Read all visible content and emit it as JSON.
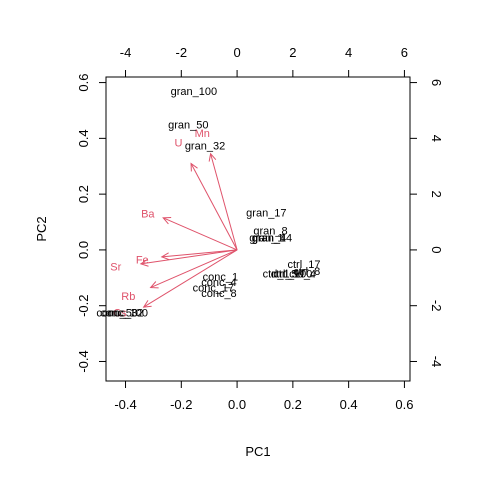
{
  "chart_data": {
    "type": "scatter",
    "subtype": "biplot",
    "title": "",
    "xlabel": "PC1",
    "ylabel": "PC2",
    "primary_axes": {
      "xlim": [
        -0.47,
        0.62
      ],
      "ylim": [
        -0.47,
        0.62
      ],
      "xticks": [
        "-0.4",
        "-0.2",
        "0.0",
        "0.2",
        "0.4",
        "0.6"
      ],
      "xtick_values": [
        -0.4,
        -0.2,
        0.0,
        0.2,
        0.4,
        0.6
      ],
      "yticks": [
        "-0.4",
        "-0.2",
        "0.0",
        "0.2",
        "0.4",
        "0.6"
      ],
      "ytick_values": [
        -0.4,
        -0.2,
        0.0,
        0.2,
        0.4,
        0.6
      ]
    },
    "secondary_axes": {
      "xlim": [
        -4.7,
        6.2
      ],
      "ylim": [
        -4.7,
        6.2
      ],
      "xticks": [
        "-4",
        "-2",
        "0",
        "2",
        "4",
        "6"
      ],
      "xtick_values": [
        -4,
        -2,
        0,
        2,
        4,
        6
      ],
      "yticks": [
        "-4",
        "-2",
        "0",
        "2",
        "4",
        "6"
      ],
      "ytick_values": [
        -4,
        -2,
        0,
        2,
        4,
        6
      ]
    },
    "observations": [
      {
        "label": "gran_100",
        "x": -0.155,
        "y": 0.57
      },
      {
        "label": "gran_50",
        "x": -0.175,
        "y": 0.45
      },
      {
        "label": "gran_32",
        "x": -0.115,
        "y": 0.375
      },
      {
        "label": "gran_17",
        "x": 0.105,
        "y": 0.135
      },
      {
        "label": "gran_8",
        "x": 0.12,
        "y": 0.07
      },
      {
        "label": "gran_1",
        "x": 0.105,
        "y": 0.045
      },
      {
        "label": "gran_4",
        "x": 0.115,
        "y": 0.045
      },
      {
        "label": "gran_14",
        "x": 0.125,
        "y": 0.045
      },
      {
        "label": "ctrl_17",
        "x": 0.24,
        "y": -0.05
      },
      {
        "label": "ctrl_1",
        "x": 0.14,
        "y": -0.085
      },
      {
        "label": "ctrl_50",
        "x": 0.18,
        "y": -0.085
      },
      {
        "label": "ctrl_100",
        "x": 0.2,
        "y": -0.085
      },
      {
        "label": "ctrl_4",
        "x": 0.235,
        "y": -0.085
      },
      {
        "label": "ctrl_8",
        "x": 0.25,
        "y": -0.075
      },
      {
        "label": "conc_1",
        "x": -0.06,
        "y": -0.095
      },
      {
        "label": "conc_4",
        "x": -0.065,
        "y": -0.115
      },
      {
        "label": "conc_17",
        "x": -0.085,
        "y": -0.135
      },
      {
        "label": "conc_8",
        "x": -0.065,
        "y": -0.155
      },
      {
        "label": "conc_32",
        "x": -0.41,
        "y": -0.225
      },
      {
        "label": "conc_50",
        "x": -0.43,
        "y": -0.225
      },
      {
        "label": "conc_100",
        "x": -0.405,
        "y": -0.225
      }
    ],
    "loadings": [
      {
        "label": "Mn",
        "x": -0.095,
        "y": 0.345,
        "label_x": -0.125,
        "label_y": 0.42
      },
      {
        "label": "U",
        "x": -0.165,
        "y": 0.31,
        "label_x": -0.21,
        "label_y": 0.385
      },
      {
        "label": "Ba",
        "x": -0.265,
        "y": 0.115,
        "label_x": -0.32,
        "label_y": 0.13
      },
      {
        "label": "Fe",
        "x": -0.27,
        "y": -0.025,
        "label_x": -0.34,
        "label_y": -0.035
      },
      {
        "label": "Sr",
        "x": -0.345,
        "y": -0.05,
        "label_x": -0.435,
        "label_y": -0.06
      },
      {
        "label": "Rb",
        "x": -0.31,
        "y": -0.135,
        "label_x": -0.39,
        "label_y": -0.165
      },
      {
        "label": "Cs",
        "x": -0.335,
        "y": -0.205,
        "label_x": -0.42,
        "label_y": -0.225
      }
    ],
    "colors": {
      "observations": "#000000",
      "loadings": "#DF536B"
    },
    "grid": false,
    "legend": "none"
  }
}
